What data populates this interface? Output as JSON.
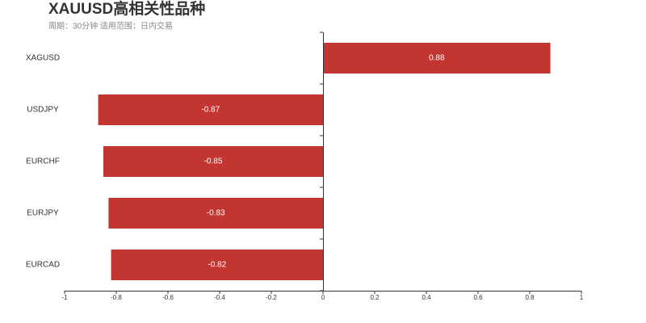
{
  "chart_data": {
    "type": "hbar",
    "title": "XAUUSD高相关性品种",
    "subtitle": "周期：30分钟 适用范围：日内交易",
    "categories": [
      "XAGUSD",
      "USDJPY",
      "EURCHF",
      "EURJPY",
      "EURCAD"
    ],
    "values": [
      0.88,
      -0.87,
      -0.85,
      -0.83,
      -0.82
    ],
    "color": "#c23531",
    "xlim": [
      -1,
      1
    ],
    "xticks": [
      -1,
      -0.8,
      -0.6,
      -0.4,
      -0.2,
      0,
      0.2,
      0.4,
      0.6,
      0.8,
      1
    ]
  }
}
